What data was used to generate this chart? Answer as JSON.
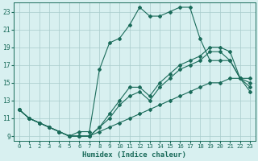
{
  "xlabel": "Humidex (Indice chaleur)",
  "background_color": "#d8f0f0",
  "grid_color": "#a8cccc",
  "line_color": "#1a6b5a",
  "xlim": [
    -0.5,
    23.5
  ],
  "ylim": [
    8.5,
    24.0
  ],
  "xticks": [
    0,
    1,
    2,
    3,
    4,
    5,
    6,
    7,
    8,
    9,
    10,
    11,
    12,
    13,
    14,
    15,
    16,
    17,
    18,
    19,
    20,
    21,
    22,
    23
  ],
  "yticks": [
    9,
    11,
    13,
    15,
    17,
    19,
    21,
    23
  ],
  "line_main_x": [
    0,
    1,
    2,
    3,
    4,
    5,
    6,
    7,
    8,
    9,
    10,
    11,
    12,
    13,
    14,
    15,
    16,
    17,
    18,
    19,
    20,
    21,
    22,
    23
  ],
  "line_main_y": [
    12.0,
    11.0,
    10.5,
    10.0,
    9.5,
    9.0,
    9.5,
    9.5,
    16.5,
    19.5,
    20.0,
    21.5,
    23.5,
    22.5,
    22.5,
    23.0,
    23.5,
    23.5,
    20.0,
    17.5,
    17.5,
    17.5,
    15.5,
    14.0
  ],
  "line_mid1_x": [
    0,
    1,
    2,
    3,
    4,
    5,
    6,
    7,
    8,
    9,
    10,
    11,
    12,
    13,
    14,
    15,
    16,
    17,
    18,
    19,
    20,
    21,
    22,
    23
  ],
  "line_mid1_y": [
    12.0,
    11.0,
    10.5,
    10.0,
    9.5,
    9.0,
    9.0,
    9.0,
    10.0,
    11.5,
    13.0,
    14.5,
    14.5,
    13.5,
    15.0,
    16.0,
    17.0,
    17.5,
    18.0,
    19.0,
    19.0,
    18.5,
    15.5,
    15.0
  ],
  "line_mid2_x": [
    0,
    1,
    2,
    3,
    4,
    5,
    6,
    7,
    8,
    9,
    10,
    11,
    12,
    13,
    14,
    15,
    16,
    17,
    18,
    19,
    20,
    21,
    22,
    23
  ],
  "line_mid2_y": [
    12.0,
    11.0,
    10.5,
    10.0,
    9.5,
    9.0,
    9.0,
    9.0,
    10.0,
    11.0,
    12.5,
    13.5,
    14.0,
    13.0,
    14.5,
    15.5,
    16.5,
    17.0,
    17.5,
    18.5,
    18.5,
    17.5,
    15.5,
    15.5
  ],
  "line_bot_x": [
    0,
    1,
    2,
    3,
    4,
    5,
    6,
    7,
    8,
    9,
    10,
    11,
    12,
    13,
    14,
    15,
    16,
    17,
    18,
    19,
    20,
    21,
    22,
    23
  ],
  "line_bot_y": [
    12.0,
    11.0,
    10.5,
    10.0,
    9.5,
    9.0,
    9.0,
    9.0,
    9.5,
    10.0,
    10.5,
    11.0,
    11.5,
    12.0,
    12.5,
    13.0,
    13.5,
    14.0,
    14.5,
    15.0,
    15.0,
    15.5,
    15.5,
    14.5
  ]
}
